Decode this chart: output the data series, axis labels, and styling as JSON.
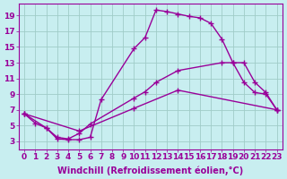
{
  "xlabel": "Windchill (Refroidissement éolien,°C)",
  "background_color": "#c8eef0",
  "grid_color": "#a0ccc8",
  "line_color": "#990099",
  "xlim": [
    -0.5,
    23.5
  ],
  "ylim": [
    2,
    20.5
  ],
  "xticks": [
    0,
    1,
    2,
    3,
    4,
    5,
    6,
    7,
    8,
    9,
    10,
    11,
    12,
    13,
    14,
    15,
    16,
    17,
    18,
    19,
    20,
    21,
    22,
    23
  ],
  "yticks": [
    3,
    5,
    7,
    9,
    11,
    13,
    15,
    17,
    19
  ],
  "line1_x": [
    0,
    1,
    2,
    3,
    4,
    5,
    6,
    7,
    10,
    11,
    12,
    13,
    14,
    15,
    16,
    17,
    18,
    19,
    20,
    21,
    22,
    23
  ],
  "line1_y": [
    6.5,
    5.3,
    4.7,
    3.3,
    3.2,
    3.2,
    3.5,
    8.3,
    14.8,
    16.2,
    19.7,
    19.5,
    19.2,
    18.9,
    18.7,
    18.0,
    16.0,
    13.0,
    13.0,
    10.5,
    9.2,
    7.0
  ],
  "line2_x": [
    0,
    2,
    3,
    4,
    5,
    6,
    10,
    11,
    12,
    14,
    18,
    19,
    20,
    21,
    22,
    23
  ],
  "line2_y": [
    6.5,
    4.7,
    3.5,
    3.3,
    4.0,
    5.2,
    8.5,
    9.3,
    10.5,
    12.0,
    13.0,
    13.0,
    10.5,
    9.2,
    9.0,
    7.0
  ],
  "line3_x": [
    0,
    5,
    10,
    14,
    23
  ],
  "line3_y": [
    6.5,
    4.3,
    7.2,
    9.5,
    7.0
  ],
  "marker": "+",
  "markersize": 4,
  "linewidth": 1.0,
  "fontsize_label": 7,
  "fontsize_tick": 6.5
}
